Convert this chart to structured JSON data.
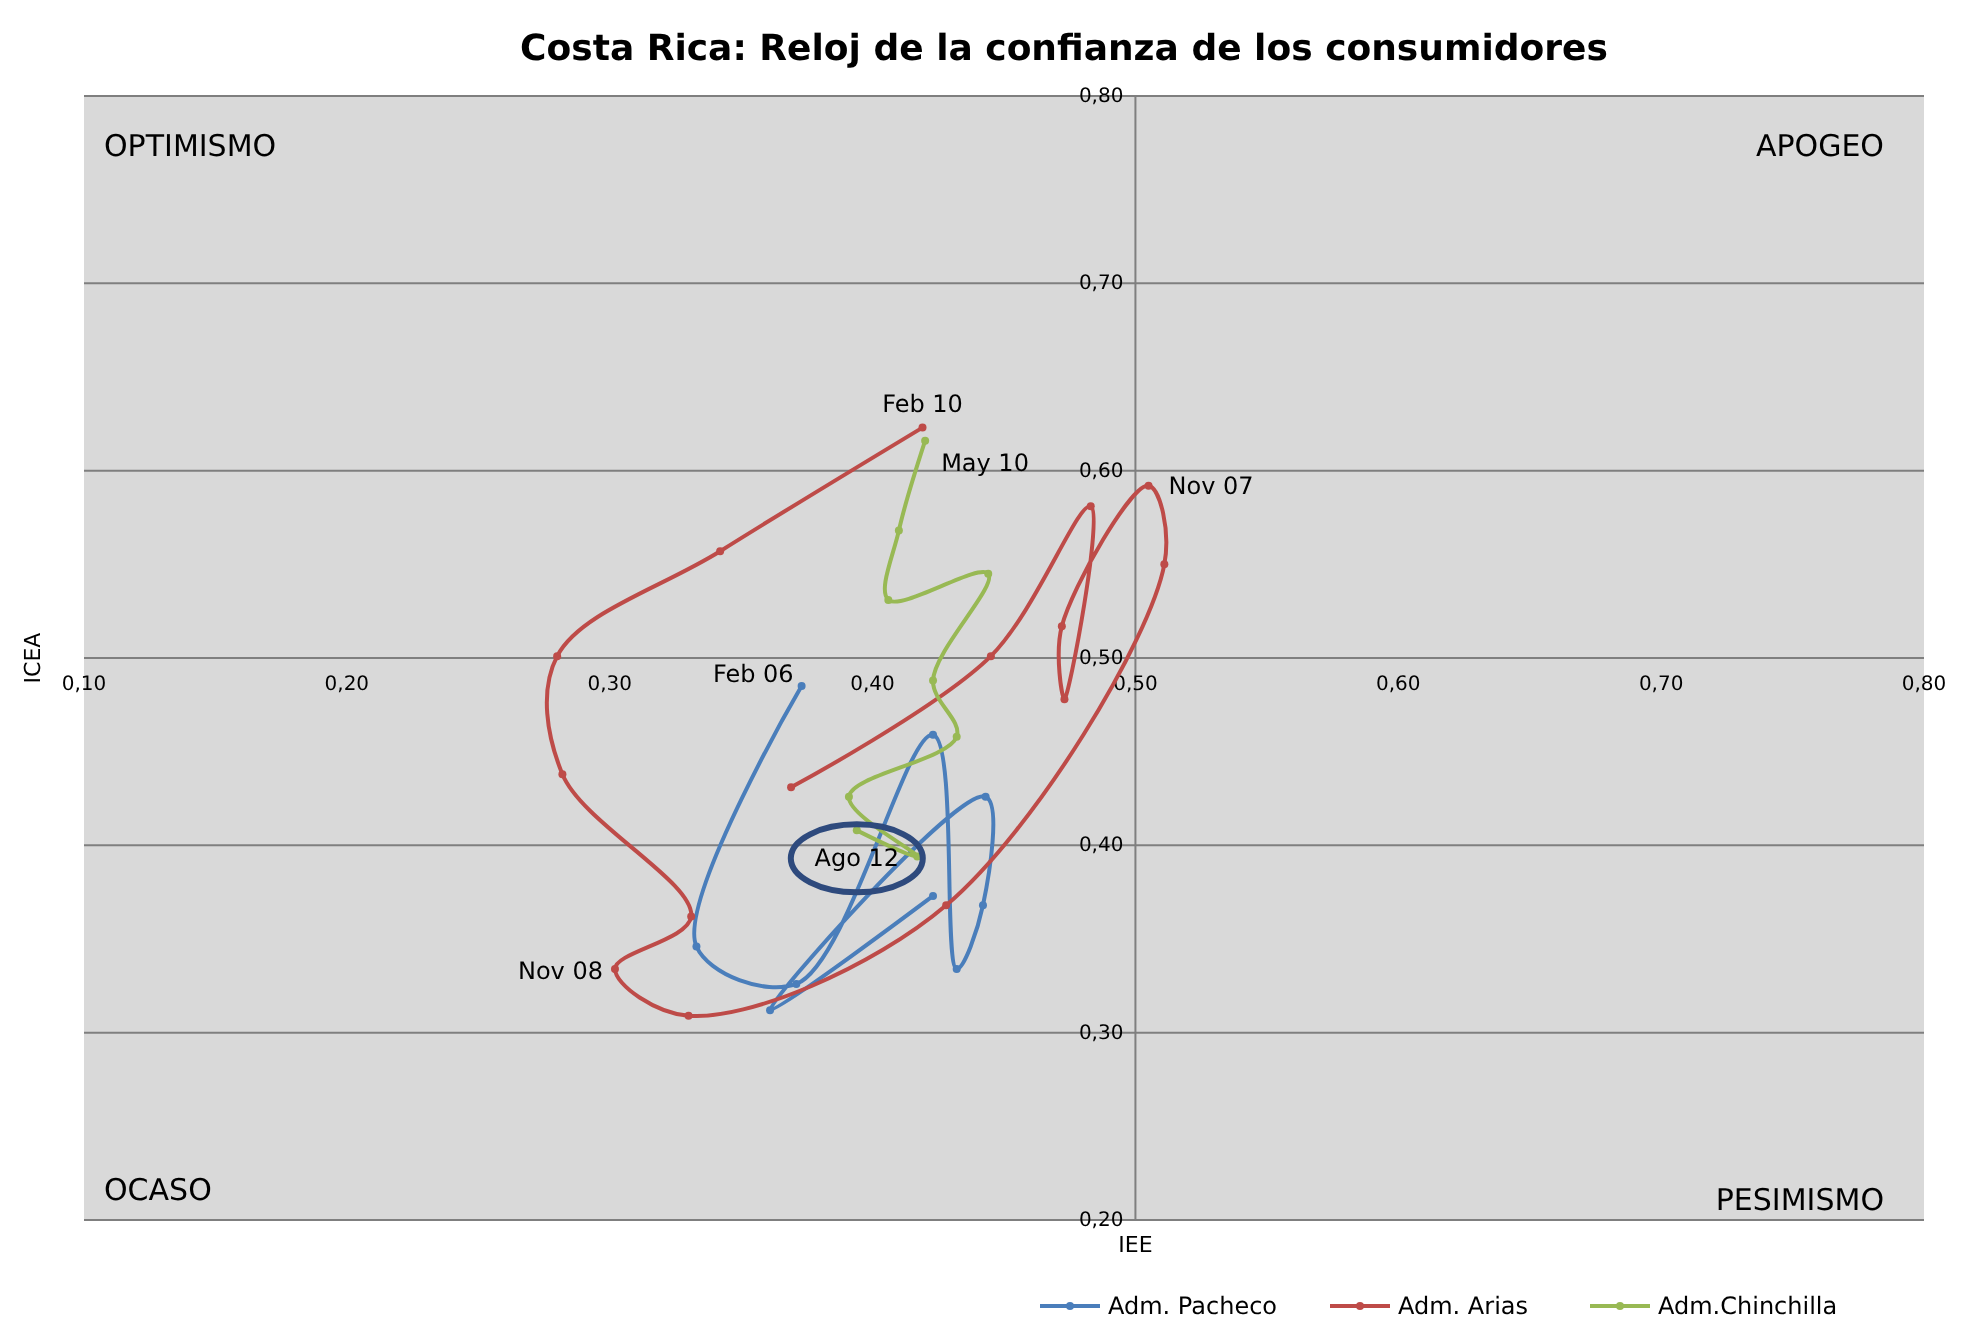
{
  "chart_data": {
    "type": "line",
    "title": "Costa Rica: Reloj de la confianza de los consumidores",
    "xlabel": "IEE",
    "ylabel": "ICEA",
    "xlim": [
      0.1,
      0.8
    ],
    "ylim": [
      0.2,
      0.8
    ],
    "xticks": [
      {
        "value": 0.1,
        "label": "0,10"
      },
      {
        "value": 0.2,
        "label": "0,20"
      },
      {
        "value": 0.3,
        "label": "0,30"
      },
      {
        "value": 0.4,
        "label": "0,40"
      },
      {
        "value": 0.5,
        "label": "0,50"
      },
      {
        "value": 0.6,
        "label": "0,60"
      },
      {
        "value": 0.7,
        "label": "0,70"
      },
      {
        "value": 0.8,
        "label": "0,80"
      }
    ],
    "yticks": [
      {
        "value": 0.2,
        "label": "0,20"
      },
      {
        "value": 0.3,
        "label": "0,30"
      },
      {
        "value": 0.4,
        "label": "0,40"
      },
      {
        "value": 0.5,
        "label": "0,50"
      },
      {
        "value": 0.6,
        "label": "0,60"
      },
      {
        "value": 0.7,
        "label": "0,70"
      },
      {
        "value": 0.8,
        "label": "0,80"
      }
    ],
    "grid": "y",
    "legend": "bottom",
    "marker": "circle",
    "line_style": "solid",
    "series": [
      {
        "name": "Adm. Pacheco",
        "color": "#4a7ebb",
        "x": [
          0.423,
          0.361,
          0.443,
          0.442,
          0.432,
          0.423,
          0.371,
          0.333,
          0.373
        ],
        "values": [
          0.373,
          0.312,
          0.426,
          0.368,
          0.334,
          0.459,
          0.326,
          0.346,
          0.485
        ]
      },
      {
        "name": "Adm. Arias",
        "color": "#be4b48",
        "x": [
          0.369,
          0.445,
          0.483,
          0.473,
          0.472,
          0.505,
          0.511,
          0.428,
          0.33,
          0.302,
          0.331,
          0.282,
          0.28,
          0.342,
          0.419
        ],
        "values": [
          0.431,
          0.501,
          0.581,
          0.478,
          0.517,
          0.592,
          0.55,
          0.368,
          0.309,
          0.334,
          0.362,
          0.438,
          0.501,
          0.557,
          0.623
        ]
      },
      {
        "name": "Adm.Chinchilla",
        "color": "#98b954",
        "x": [
          0.42,
          0.41,
          0.406,
          0.444,
          0.423,
          0.432,
          0.391,
          0.417,
          0.394
        ],
        "values": [
          0.616,
          0.568,
          0.531,
          0.545,
          0.488,
          0.458,
          0.426,
          0.394,
          0.408
        ]
      }
    ],
    "annotations": [
      "OPTIMISMO",
      "APOGEO",
      "OCASO",
      "PESIMISMO",
      {
        "text": "Feb 10",
        "x": 0.419,
        "y": 0.623
      },
      {
        "text": "May 10",
        "x": 0.42,
        "y": 0.616
      },
      {
        "text": "Nov 07",
        "x": 0.505,
        "y": 0.592
      },
      {
        "text": "Feb 06",
        "x": 0.373,
        "y": 0.485
      },
      {
        "text": "Nov 08",
        "x": 0.302,
        "y": 0.334
      },
      {
        "text": "Ago 12",
        "x": 0.394,
        "y": 0.408
      }
    ]
  }
}
